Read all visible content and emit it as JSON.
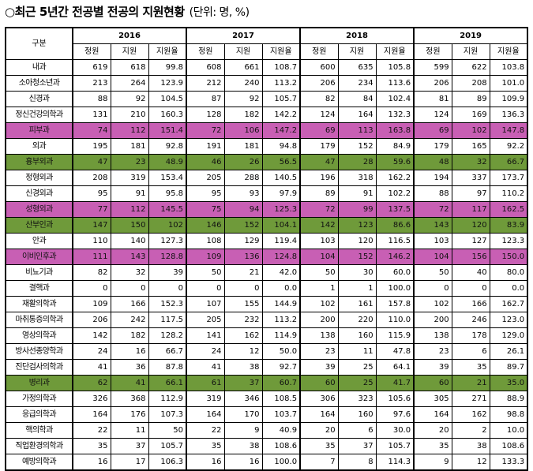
{
  "title": "○최근 5년간 전공별 전공의 지원현황",
  "unit": "(단위: 명, %)",
  "header": {
    "gubun": "구분",
    "years": [
      "2016",
      "2017",
      "2018",
      "2019"
    ],
    "sub": [
      "정원",
      "지원",
      "지원율"
    ]
  },
  "rows": [
    {
      "name": "내과",
      "hl": "",
      "v": [
        "619",
        "618",
        "99.8",
        "608",
        "661",
        "108.7",
        "600",
        "635",
        "105.8",
        "599",
        "622",
        "103.8"
      ]
    },
    {
      "name": "소아청소년과",
      "hl": "",
      "v": [
        "213",
        "264",
        "123.9",
        "212",
        "240",
        "113.2",
        "206",
        "234",
        "113.6",
        "206",
        "208",
        "101.0"
      ]
    },
    {
      "name": "신경과",
      "hl": "",
      "v": [
        "88",
        "92",
        "104.5",
        "87",
        "92",
        "105.7",
        "82",
        "84",
        "102.4",
        "81",
        "89",
        "109.9"
      ]
    },
    {
      "name": "정신건강의학과",
      "hl": "",
      "v": [
        "131",
        "210",
        "160.3",
        "128",
        "182",
        "142.2",
        "124",
        "164",
        "132.3",
        "124",
        "169",
        "136.3"
      ]
    },
    {
      "name": "피부과",
      "hl": "pink",
      "v": [
        "74",
        "112",
        "151.4",
        "72",
        "106",
        "147.2",
        "69",
        "113",
        "163.8",
        "69",
        "102",
        "147.8"
      ]
    },
    {
      "name": "외과",
      "hl": "",
      "v": [
        "195",
        "181",
        "92.8",
        "191",
        "181",
        "94.8",
        "179",
        "152",
        "84.9",
        "179",
        "165",
        "92.2"
      ]
    },
    {
      "name": "흉부외과",
      "hl": "green",
      "v": [
        "47",
        "23",
        "48.9",
        "46",
        "26",
        "56.5",
        "47",
        "28",
        "59.6",
        "48",
        "32",
        "66.7"
      ]
    },
    {
      "name": "정형외과",
      "hl": "",
      "v": [
        "208",
        "319",
        "153.4",
        "205",
        "288",
        "140.5",
        "196",
        "318",
        "162.2",
        "194",
        "337",
        "173.7"
      ]
    },
    {
      "name": "신경외과",
      "hl": "",
      "v": [
        "95",
        "91",
        "95.8",
        "95",
        "93",
        "97.9",
        "89",
        "91",
        "102.2",
        "88",
        "97",
        "110.2"
      ]
    },
    {
      "name": "성형외과",
      "hl": "pink",
      "v": [
        "77",
        "112",
        "145.5",
        "75",
        "94",
        "125.3",
        "72",
        "99",
        "137.5",
        "72",
        "117",
        "162.5"
      ]
    },
    {
      "name": "산부인과",
      "hl": "green",
      "v": [
        "147",
        "150",
        "102",
        "146",
        "152",
        "104.1",
        "142",
        "123",
        "86.6",
        "143",
        "120",
        "83.9"
      ]
    },
    {
      "name": "안과",
      "hl": "",
      "v": [
        "110",
        "140",
        "127.3",
        "108",
        "129",
        "119.4",
        "103",
        "120",
        "116.5",
        "103",
        "127",
        "123.3"
      ]
    },
    {
      "name": "이비인후과",
      "hl": "pink",
      "v": [
        "111",
        "143",
        "128.8",
        "109",
        "136",
        "124.8",
        "104",
        "152",
        "146.2",
        "104",
        "156",
        "150.0"
      ]
    },
    {
      "name": "비뇨기과",
      "hl": "",
      "v": [
        "82",
        "32",
        "39",
        "50",
        "21",
        "42.0",
        "50",
        "30",
        "60.0",
        "50",
        "40",
        "80.0"
      ]
    },
    {
      "name": "결핵과",
      "hl": "",
      "v": [
        "0",
        "0",
        "0",
        "0",
        "0",
        "0.0",
        "1",
        "1",
        "100.0",
        "0",
        "0",
        "0.0"
      ]
    },
    {
      "name": "재활의학과",
      "hl": "",
      "v": [
        "109",
        "166",
        "152.3",
        "107",
        "155",
        "144.9",
        "102",
        "161",
        "157.8",
        "102",
        "166",
        "162.7"
      ]
    },
    {
      "name": "마취통증의학과",
      "hl": "",
      "v": [
        "206",
        "242",
        "117.5",
        "205",
        "232",
        "113.2",
        "200",
        "220",
        "110.0",
        "200",
        "246",
        "123.0"
      ]
    },
    {
      "name": "영상의학과",
      "hl": "",
      "v": [
        "142",
        "182",
        "128.2",
        "141",
        "162",
        "114.9",
        "138",
        "160",
        "115.9",
        "138",
        "178",
        "129.0"
      ]
    },
    {
      "name": "방사선종양학과",
      "hl": "",
      "v": [
        "24",
        "16",
        "66.7",
        "24",
        "12",
        "50.0",
        "23",
        "11",
        "47.8",
        "23",
        "6",
        "26.1"
      ]
    },
    {
      "name": "진단검사의학과",
      "hl": "",
      "v": [
        "41",
        "36",
        "87.8",
        "41",
        "38",
        "92.7",
        "39",
        "25",
        "64.1",
        "39",
        "35",
        "89.7"
      ]
    },
    {
      "name": "병리과",
      "hl": "green",
      "v": [
        "62",
        "41",
        "66.1",
        "61",
        "37",
        "60.7",
        "60",
        "25",
        "41.7",
        "60",
        "21",
        "35.0"
      ]
    },
    {
      "name": "가정의학과",
      "hl": "",
      "v": [
        "326",
        "368",
        "112.9",
        "319",
        "346",
        "108.5",
        "306",
        "323",
        "105.6",
        "305",
        "271",
        "88.9"
      ]
    },
    {
      "name": "응급의학과",
      "hl": "",
      "v": [
        "164",
        "176",
        "107.3",
        "164",
        "170",
        "103.7",
        "164",
        "160",
        "97.6",
        "164",
        "162",
        "98.8"
      ]
    },
    {
      "name": "핵의학과",
      "hl": "",
      "v": [
        "22",
        "11",
        "50",
        "22",
        "9",
        "40.9",
        "20",
        "6",
        "30.0",
        "20",
        "2",
        "10.0"
      ]
    },
    {
      "name": "직업환경의학과",
      "hl": "",
      "v": [
        "35",
        "37",
        "105.7",
        "35",
        "38",
        "108.6",
        "35",
        "37",
        "105.7",
        "35",
        "38",
        "108.6"
      ]
    },
    {
      "name": "예방의학과",
      "hl": "",
      "v": [
        "16",
        "17",
        "106.3",
        "16",
        "16",
        "100.0",
        "7",
        "8",
        "114.3",
        "9",
        "12",
        "133.3"
      ]
    }
  ]
}
